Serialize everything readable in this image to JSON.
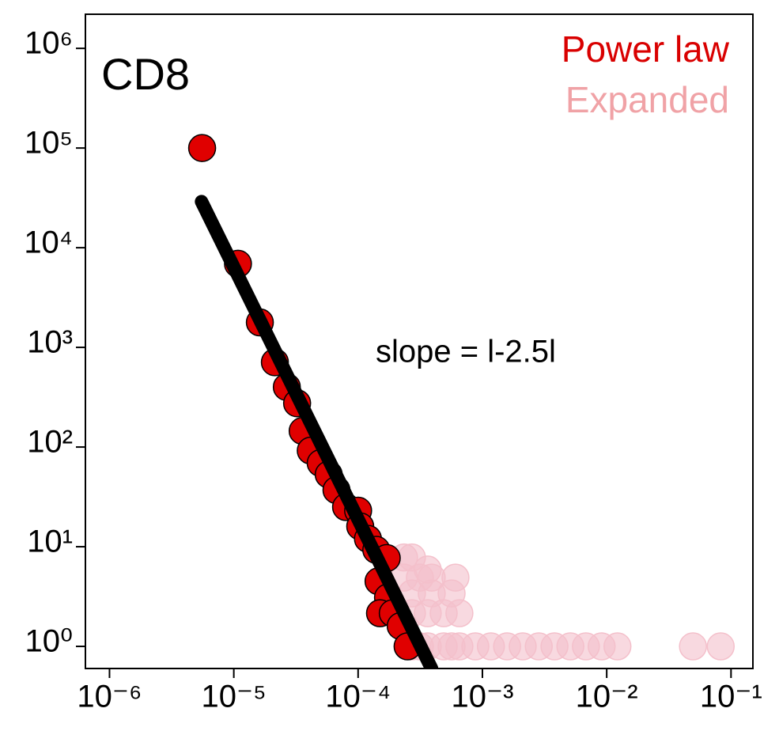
{
  "chart_data": {
    "type": "scatter",
    "title": "CD8",
    "annotation": "slope = l-2.5l",
    "xscale": "log",
    "yscale": "log",
    "xlim": [
      6.4e-07,
      0.15
    ],
    "ylim": [
      0.6,
      2200000.0
    ],
    "xticks": [
      {
        "value": 1e-06,
        "label": "10⁻⁶"
      },
      {
        "value": 1e-05,
        "label": "10⁻⁵"
      },
      {
        "value": 0.0001,
        "label": "10⁻⁴"
      },
      {
        "value": 0.001,
        "label": "10⁻³"
      },
      {
        "value": 0.01,
        "label": "10⁻²"
      },
      {
        "value": 0.1,
        "label": "10⁻¹"
      }
    ],
    "yticks": [
      {
        "value": 1,
        "label": "10⁰"
      },
      {
        "value": 10,
        "label": "10¹"
      },
      {
        "value": 100,
        "label": "10²"
      },
      {
        "value": 1000,
        "label": "10³"
      },
      {
        "value": 10000,
        "label": "10⁴"
      },
      {
        "value": 100000,
        "label": "10⁵"
      },
      {
        "value": 1000000,
        "label": "10⁶"
      }
    ],
    "legend": "top-right",
    "series": [
      {
        "name": "Expanded",
        "color": "#f4c0cb",
        "x": [
          0.000271,
          0.000314,
          0.000363,
          0.000488,
          0.000565,
          0.000653,
          0.000877,
          0.00117,
          0.00158,
          0.00211,
          0.00284,
          0.0038,
          0.0051,
          0.0068,
          0.0091,
          0.0122,
          0.0494,
          0.0826,
          0.000271,
          0.000363,
          0.000488,
          0.000653,
          0.000271,
          0.000391,
          0.000565,
          0.000234,
          0.000314,
          0.000391,
          0.000607,
          0.000363,
          0.000234,
          0.000271
        ],
        "y": [
          1,
          1,
          1,
          1,
          1,
          1,
          1,
          1,
          1,
          1,
          1,
          1,
          1,
          1,
          1,
          1,
          1,
          1,
          2.15,
          2.15,
          2.15,
          2.15,
          3.4,
          3.4,
          3.4,
          4.9,
          4.9,
          4.9,
          4.9,
          5.9,
          7.8,
          7.8
        ]
      },
      {
        "name": "Power law",
        "color": "#e00000",
        "x": [
          5.56e-06,
          1.08e-05,
          1.62e-05,
          2.14e-05,
          2.67e-05,
          3.23e-05,
          3.58e-05,
          4.16e-05,
          5e-05,
          5.8e-05,
          6.7e-05,
          8e-05,
          0.0001,
          0.000104,
          0.00012,
          0.00014,
          0.00017,
          0.000146,
          0.000174,
          0.00015,
          0.00019,
          0.00022,
          0.00025
        ],
        "y": [
          100000,
          6900,
          1780,
          710,
          400,
          275,
          145,
          92,
          69,
          53,
          37,
          25,
          23,
          16,
          12,
          9.3,
          7.7,
          4.5,
          3.1,
          2.15,
          2.15,
          1.6,
          1
        ]
      }
    ],
    "fit": {
      "color": "#000000",
      "x": [
        5.5e-06,
        0.00039
      ],
      "y": [
        29000,
        0.6
      ]
    }
  }
}
